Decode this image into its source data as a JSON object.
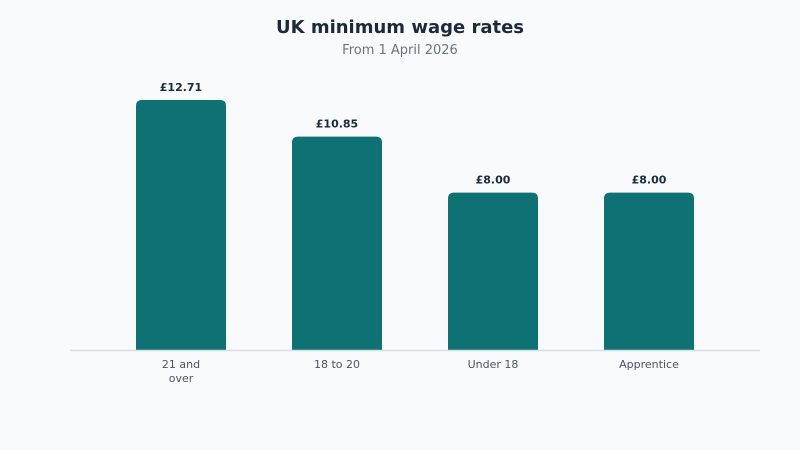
{
  "chart_data": {
    "type": "bar",
    "title": "UK minimum wage rates",
    "subtitle": "From 1 April 2026",
    "categories": [
      [
        "21 and",
        "over"
      ],
      [
        "18 to 20"
      ],
      [
        "Under 18"
      ],
      [
        "Apprentice"
      ]
    ],
    "values": [
      12.71,
      10.85,
      8.0,
      8.0
    ],
    "value_labels": [
      "£12.71",
      "£10.85",
      "£8.00",
      "£8.00"
    ],
    "xlabel": "",
    "ylabel": "",
    "ylim": [
      0,
      13
    ],
    "grid": false,
    "legend": "none",
    "bar_color": "#0e7274",
    "axis_color": "#d7dde3"
  }
}
